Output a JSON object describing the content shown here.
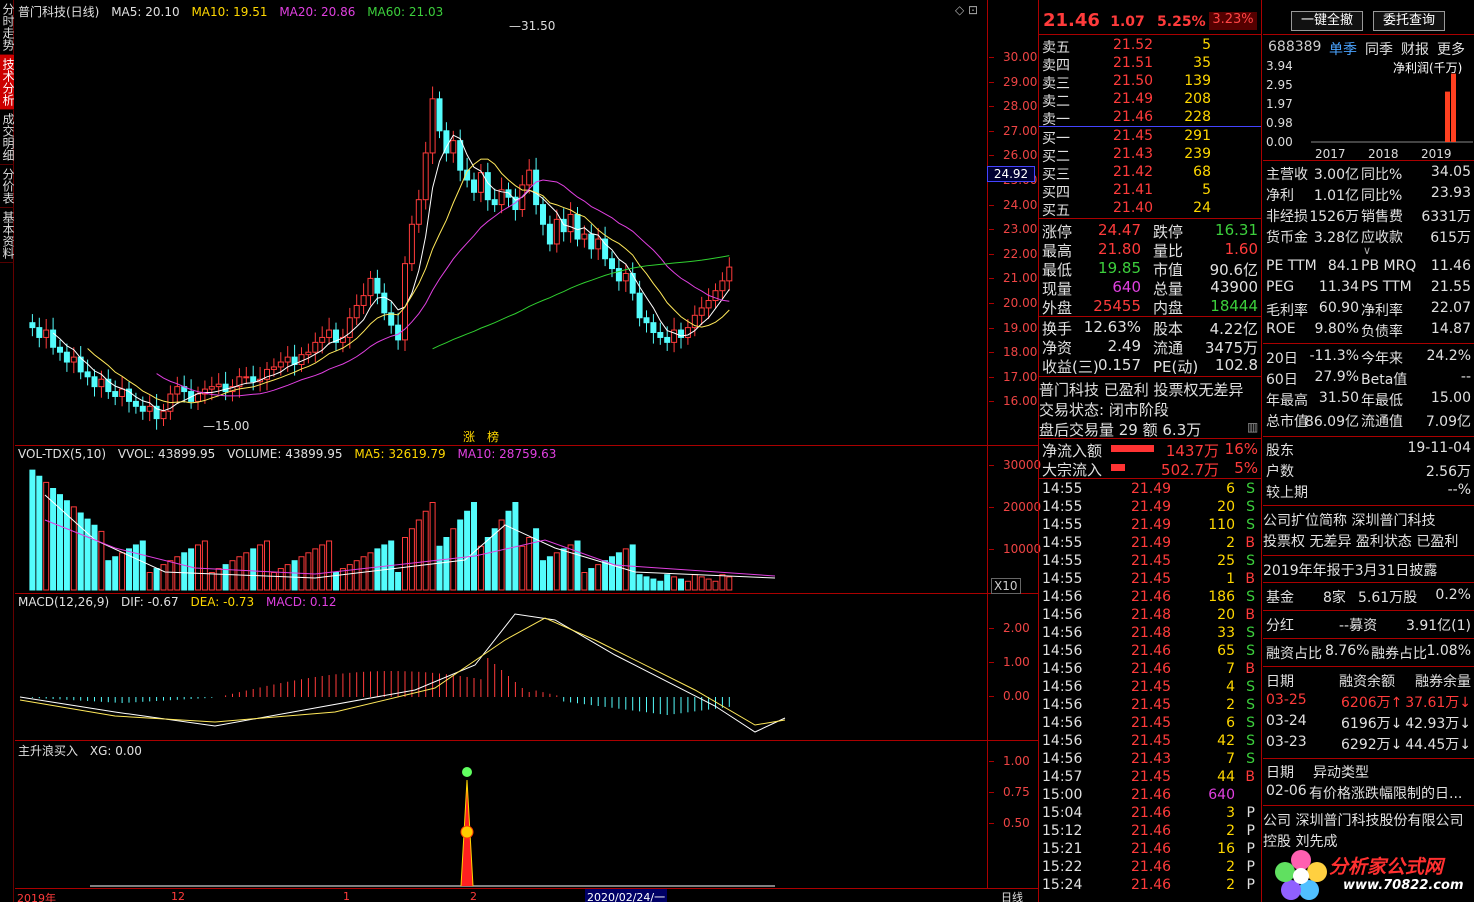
{
  "side_tabs": [
    "分时走势",
    "技术分析",
    "成交明细",
    "分价表",
    "基本资料"
  ],
  "main_legend": {
    "title": "普门科技(日线)",
    "ma5": "MA5: 20.10",
    "ma10": "MA10: 19.51",
    "ma20": "MA20: 20.86",
    "ma60": "MA60: 21.03"
  },
  "price_axis": [
    "30.00",
    "29.00",
    "28.00",
    "27.00",
    "26.00",
    "25.00",
    "24.00",
    "23.00",
    "22.00",
    "21.00",
    "20.00",
    "19.00",
    "18.00",
    "17.00",
    "16.00"
  ],
  "crosshair_price": "24.92",
  "high_label": "31.50",
  "low_label": "15.00",
  "zhang_label": "涨",
  "bang_label": "榜",
  "vol_legend": {
    "name": "VOL-TDX(5,10)",
    "vvol": "VVOL: 43899.95",
    "volume": "VOLUME: 43899.95",
    "ma5": "MA5: 32619.79",
    "ma10": "MA10: 28759.63"
  },
  "vol_axis": [
    "30000",
    "20000",
    "10000"
  ],
  "vol_unit": "X10",
  "macd_legend": {
    "name": "MACD(12,26,9)",
    "dif": "DIF: -0.67",
    "dea": "DEA: -0.73",
    "macd": "MACD: 0.12"
  },
  "macd_axis": [
    "2.00",
    "1.00",
    "0.00"
  ],
  "xg_legend": {
    "name": "主升浪买入",
    "xg": "XG: 0.00"
  },
  "xg_axis": [
    "1.00",
    "0.75",
    "0.50"
  ],
  "x_axis": {
    "left": "2019年",
    "m12": "12",
    "m1": "1",
    "m2": "2",
    "cursor_date": "2020/02/24/一",
    "period": "日线"
  },
  "quote": {
    "price": "21.46",
    "change": "1.07",
    "pct": "5.25%",
    "weibi": "3.23%"
  },
  "asks": [
    {
      "l": "卖五",
      "p": "21.52",
      "v": "5"
    },
    {
      "l": "卖四",
      "p": "21.51",
      "v": "35"
    },
    {
      "l": "卖三",
      "p": "21.50",
      "v": "139"
    },
    {
      "l": "卖二",
      "p": "21.49",
      "v": "208"
    },
    {
      "l": "卖一",
      "p": "21.46",
      "v": "228"
    }
  ],
  "bids": [
    {
      "l": "买一",
      "p": "21.45",
      "v": "291"
    },
    {
      "l": "买二",
      "p": "21.43",
      "v": "239"
    },
    {
      "l": "买三",
      "p": "21.42",
      "v": "68"
    },
    {
      "l": "买四",
      "p": "21.41",
      "v": "5"
    },
    {
      "l": "买五",
      "p": "21.40",
      "v": "24"
    }
  ],
  "stats": [
    {
      "a": "涨停",
      "b": "24.47",
      "c": "跌停",
      "d": "16.31"
    },
    {
      "a": "最高",
      "b": "21.80",
      "c": "量比",
      "d": "1.60"
    },
    {
      "a": "最低",
      "b": "19.85",
      "c": "市值",
      "d": "90.6亿"
    },
    {
      "a": "现量",
      "b": "640",
      "c": "总量",
      "d": "43900"
    },
    {
      "a": "外盘",
      "b": "25455",
      "c": "内盘",
      "d": "18444"
    }
  ],
  "stats2": [
    {
      "a": "换手",
      "b": "12.63%",
      "c": "股本",
      "d": "4.22亿"
    },
    {
      "a": "净资",
      "b": "2.49",
      "c": "流通",
      "d": "3475万"
    },
    {
      "a": "收益(三)",
      "b": "0.157",
      "c": "PE(动)",
      "d": "102.8"
    }
  ],
  "status": {
    "line1": "普门科技 已盈利 投票权无差异",
    "line2": "交易状态: 闭市阶段",
    "line3": "盘后交易量 29 额 6.3万"
  },
  "flows": [
    {
      "l": "净流入额",
      "v": "1437万",
      "p": "16%",
      "w": 0.62
    },
    {
      "l": "大宗流入",
      "v": "502.7万",
      "p": "5%",
      "w": 0.2
    }
  ],
  "ticks": [
    {
      "t": "14:55",
      "p": "21.49",
      "v": "6",
      "s": "S"
    },
    {
      "t": "14:55",
      "p": "21.49",
      "v": "20",
      "s": "S"
    },
    {
      "t": "14:55",
      "p": "21.49",
      "v": "110",
      "s": "S"
    },
    {
      "t": "14:55",
      "p": "21.49",
      "v": "2",
      "s": "B"
    },
    {
      "t": "14:55",
      "p": "21.45",
      "v": "25",
      "s": "S"
    },
    {
      "t": "14:55",
      "p": "21.45",
      "v": "1",
      "s": "B"
    },
    {
      "t": "14:56",
      "p": "21.46",
      "v": "186",
      "s": "S"
    },
    {
      "t": "14:56",
      "p": "21.48",
      "v": "20",
      "s": "B"
    },
    {
      "t": "14:56",
      "p": "21.48",
      "v": "33",
      "s": "S"
    },
    {
      "t": "14:56",
      "p": "21.46",
      "v": "65",
      "s": "S"
    },
    {
      "t": "14:56",
      "p": "21.46",
      "v": "7",
      "s": "B"
    },
    {
      "t": "14:56",
      "p": "21.45",
      "v": "4",
      "s": "S"
    },
    {
      "t": "14:56",
      "p": "21.45",
      "v": "2",
      "s": "S"
    },
    {
      "t": "14:56",
      "p": "21.45",
      "v": "6",
      "s": "S"
    },
    {
      "t": "14:56",
      "p": "21.45",
      "v": "42",
      "s": "S"
    },
    {
      "t": "14:56",
      "p": "21.43",
      "v": "7",
      "s": "S"
    },
    {
      "t": "14:57",
      "p": "21.45",
      "v": "44",
      "s": "B"
    },
    {
      "t": "15:00",
      "p": "21.46",
      "v": "640",
      "s": ""
    },
    {
      "t": "15:04",
      "p": "21.46",
      "v": "3",
      "s": "P"
    },
    {
      "t": "15:12",
      "p": "21.46",
      "v": "2",
      "s": "P"
    },
    {
      "t": "15:21",
      "p": "21.46",
      "v": "16",
      "s": "P"
    },
    {
      "t": "15:22",
      "p": "21.46",
      "v": "2",
      "s": "P"
    },
    {
      "t": "15:24",
      "p": "21.46",
      "v": "2",
      "s": "P"
    }
  ],
  "right": {
    "btn1": "一键全撤",
    "btn2": "委托查询",
    "code": "688389",
    "tabs": [
      "单季",
      "同季",
      "财报",
      "更多"
    ],
    "bar_axis": [
      "3.94",
      "2.95",
      "1.97",
      "0.98",
      "0.00"
    ],
    "bar_title": "净利润(千万)",
    "years": [
      "2017",
      "2018",
      "2019"
    ],
    "bars": [
      0,
      0,
      0.7,
      0.95
    ],
    "fin": [
      {
        "a": "主营收",
        "b": "3.00亿",
        "c": "同比%",
        "d": "34.05"
      },
      {
        "a": "净利",
        "b": "1.01亿",
        "c": "同比%",
        "d": "23.93"
      },
      {
        "a": "非经损",
        "b": "1526万",
        "c": "销售费",
        "d": "6331万"
      },
      {
        "a": "货币金",
        "b": "3.28亿",
        "c": "应收款",
        "d": "615万"
      }
    ],
    "val": [
      {
        "a": "PE TTM",
        "b": "84.1",
        "c": "PB MRQ",
        "d": "11.46"
      },
      {
        "a": "PEG",
        "b": "11.34",
        "c": "PS TTM",
        "d": "21.55"
      },
      {
        "a": "毛利率",
        "b": "60.90",
        "c": "净利率",
        "d": "22.07"
      },
      {
        "a": "ROE",
        "b": "9.80%",
        "c": "负债率",
        "d": "14.87"
      }
    ],
    "perf": [
      {
        "a": "20日",
        "b": "-11.3%",
        "c": "今年来",
        "d": "24.2%"
      },
      {
        "a": "60日",
        "b": "27.9%",
        "c": "Beta值",
        "d": "--"
      },
      {
        "a": "年最高",
        "b": "31.50",
        "c": "年最低",
        "d": "15.00"
      },
      {
        "a": "总市值",
        "b": "86.09亿",
        "c": "流通值",
        "d": "7.09亿"
      }
    ],
    "holders": [
      {
        "a": "股东",
        "d": "19-11-04"
      },
      {
        "a": "户数",
        "d": "2.56万"
      },
      {
        "a": "较上期",
        "d": "--%"
      }
    ],
    "company1": "公司扩位简称 深圳普门科技",
    "company2": "投票权 无差异 盈利状态 已盈利",
    "report": "2019年年报于3月31日披露",
    "fund": {
      "a": "基金",
      "b": "8家",
      "c": "5.61万股",
      "d": "0.2%"
    },
    "div": {
      "a": "分红",
      "b": "--募资",
      "d": "3.91亿(1)"
    },
    "margin_ratio": {
      "a": "融资占比",
      "b": "8.76%",
      "c": "融券占比",
      "d": "1.08%"
    },
    "margin_head": {
      "a": "日期",
      "b": "融资余额",
      "c": "融券余量"
    },
    "margin": [
      {
        "a": "03-25",
        "b": "6206万↑",
        "c": "37.61万↓"
      },
      {
        "a": "03-24",
        "b": "6196万↓",
        "c": "42.93万↓"
      },
      {
        "a": "03-23",
        "b": "6292万↓",
        "c": "44.45万↓"
      }
    ],
    "event_head": {
      "a": "日期",
      "b": "异动类型"
    },
    "event": {
      "a": "02-06",
      "b": "有价格涨跌幅限制的日..."
    },
    "corp": "公司 深圳普门科技股份有限公司",
    "ctrl": "控股 刘先成",
    "watermark": "分析家公式网",
    "watermark_url": "www.70822.com"
  }
}
